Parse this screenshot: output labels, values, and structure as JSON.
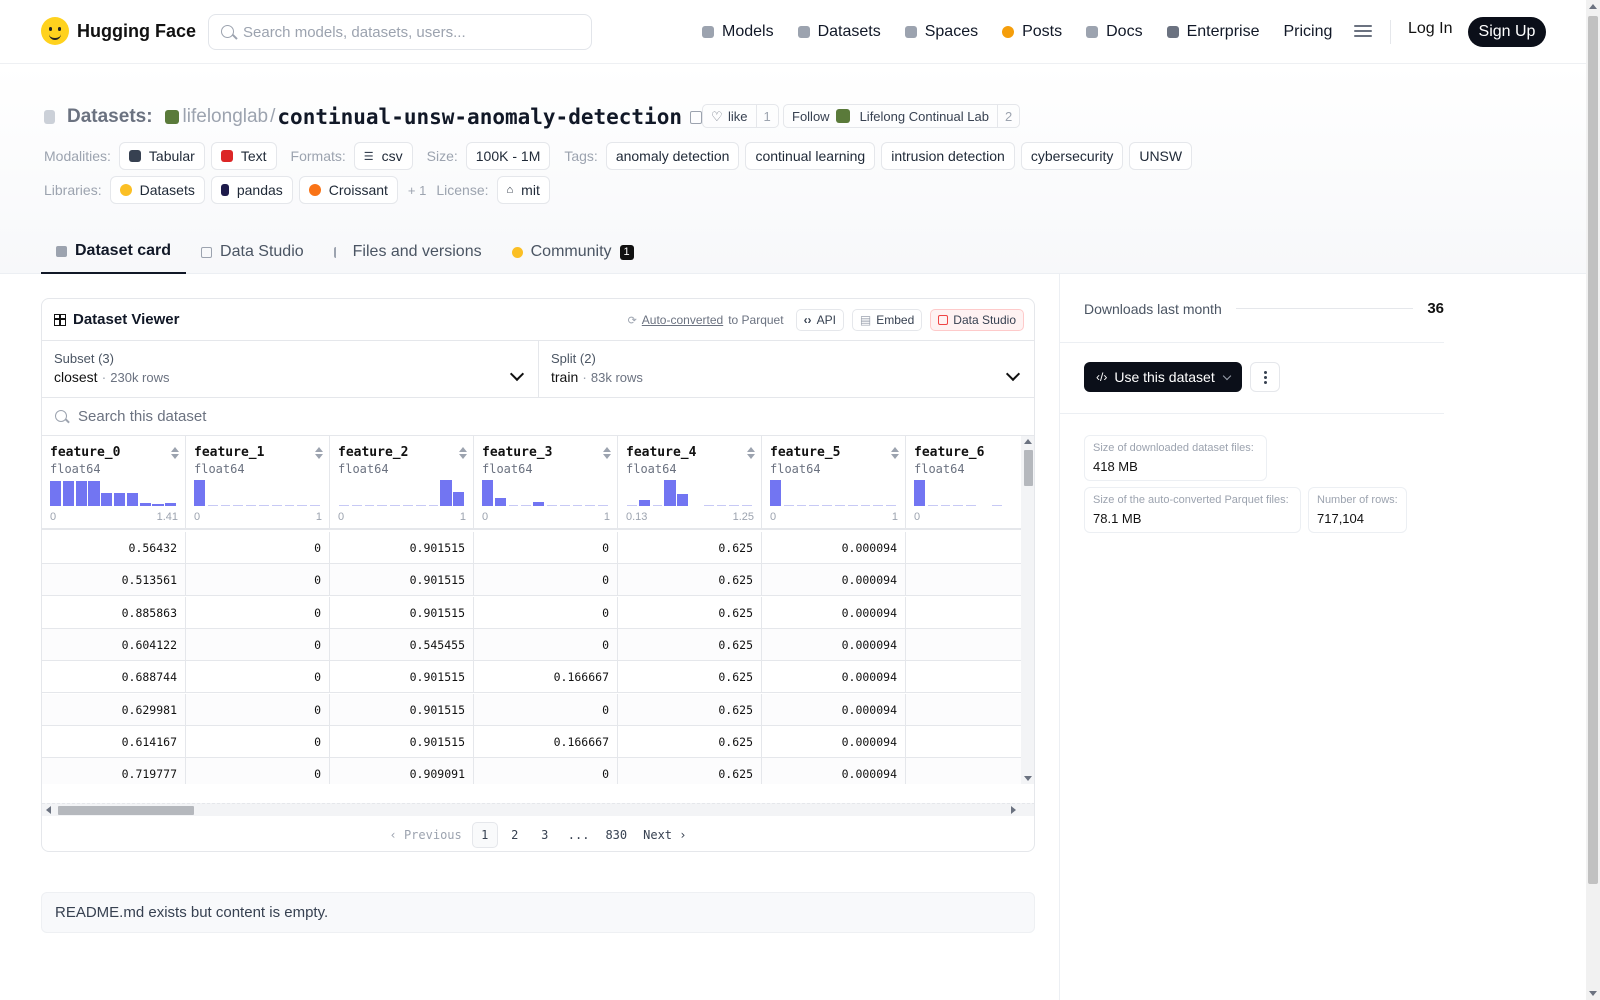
{
  "brand": {
    "name": "Hugging Face",
    "logo": "hugging-face-emoji"
  },
  "search": {
    "placeholder": "Search models, datasets, users..."
  },
  "nav": {
    "items": [
      {
        "label": "Models",
        "icon": "cube-icon",
        "color": "#9ca3af"
      },
      {
        "label": "Datasets",
        "icon": "database-icon",
        "color": "#9ca3af"
      },
      {
        "label": "Spaces",
        "icon": "grid-icon",
        "color": "#9ca3af"
      },
      {
        "label": "Posts",
        "icon": "chat-icon",
        "color": "#f59e0b"
      },
      {
        "label": "Docs",
        "icon": "book-icon",
        "color": "#9ca3af"
      },
      {
        "label": "Enterprise",
        "icon": "enterprise-icon",
        "color": "#6b7280"
      },
      {
        "label": "Pricing",
        "icon": "",
        "color": ""
      }
    ],
    "login": "Log In",
    "signup": "Sign Up"
  },
  "header": {
    "prefix": "Datasets:",
    "org": "lifelonglab",
    "name": "continual-unsw-anomaly-detection",
    "like_label": "like",
    "like_count": "1",
    "follow_label": "Follow",
    "follow_org": "Lifelong Continual Lab",
    "follow_count": "2"
  },
  "meta": {
    "modalities_label": "Modalities:",
    "modalities": [
      "Tabular",
      "Text"
    ],
    "formats_label": "Formats:",
    "formats": [
      "csv"
    ],
    "size_label": "Size:",
    "size": "100K - 1M",
    "tags_label": "Tags:",
    "tags": [
      "anomaly detection",
      "continual learning",
      "intrusion detection",
      "cybersecurity",
      "UNSW"
    ],
    "libraries_label": "Libraries:",
    "libraries": [
      "Datasets",
      "pandas",
      "Croissant"
    ],
    "libraries_more": "+ 1",
    "license_label": "License:",
    "license": "mit"
  },
  "tabs": [
    {
      "label": "Dataset card",
      "active": true
    },
    {
      "label": "Data Studio",
      "active": false
    },
    {
      "label": "Files and versions",
      "active": false
    },
    {
      "label": "Community",
      "active": false,
      "badge": "1"
    }
  ],
  "viewer": {
    "title": "Dataset Viewer",
    "auto_converted": "Auto-converted",
    "to_parquet": "to Parquet",
    "api": "API",
    "embed": "Embed",
    "data_studio": "Data Studio",
    "subset_label": "Subset (3)",
    "subset_value": "closest",
    "subset_rows": "230k rows",
    "split_label": "Split (2)",
    "split_value": "train",
    "split_rows": "83k rows",
    "search_placeholder": "Search this dataset",
    "columns": [
      {
        "name": "feature_0",
        "type": "float64",
        "min": "0",
        "max": "1.41",
        "hist": [
          0.95,
          0.95,
          0.95,
          0.95,
          0.5,
          0.5,
          0.5,
          0.12,
          0.06,
          0.12
        ]
      },
      {
        "name": "feature_1",
        "type": "float64",
        "min": "0",
        "max": "1",
        "hist": [
          1.0,
          0.04,
          0.04,
          0.04,
          0.04,
          0.04,
          0.04,
          0.04,
          0.04,
          0.04
        ]
      },
      {
        "name": "feature_2",
        "type": "float64",
        "min": "0",
        "max": "1",
        "hist": [
          0.04,
          0.04,
          0.04,
          0.04,
          0.04,
          0.04,
          0.04,
          0.04,
          1.0,
          0.55
        ]
      },
      {
        "name": "feature_3",
        "type": "float64",
        "min": "0",
        "max": "1",
        "hist": [
          1.0,
          0.3,
          0.04,
          0.04,
          0.15,
          0.04,
          0.04,
          0.04,
          0.04,
          0.04
        ]
      },
      {
        "name": "feature_4",
        "type": "float64",
        "min": "0.13",
        "max": "1.25",
        "hist": [
          0.04,
          0.22,
          0.04,
          1.0,
          0.45,
          0.0,
          0.04,
          0.04,
          0.04,
          0.04
        ]
      },
      {
        "name": "feature_5",
        "type": "float64",
        "min": "0",
        "max": "1",
        "hist": [
          1.0,
          0.04,
          0.04,
          0.04,
          0.04,
          0.04,
          0.04,
          0.04,
          0.04,
          0.04
        ]
      },
      {
        "name": "feature_6",
        "type": "float64",
        "min": "0",
        "max": "",
        "hist": [
          1.0,
          0.04,
          0.04,
          0.04,
          0.04,
          0.0,
          0.04,
          0.0,
          0.0,
          0.0
        ]
      }
    ],
    "rows": [
      [
        "0.56432",
        "0",
        "0.901515",
        "0",
        "0.625",
        "0.000094",
        ""
      ],
      [
        "0.513561",
        "0",
        "0.901515",
        "0",
        "0.625",
        "0.000094",
        ""
      ],
      [
        "0.885863",
        "0",
        "0.901515",
        "0",
        "0.625",
        "0.000094",
        ""
      ],
      [
        "0.604122",
        "0",
        "0.545455",
        "0",
        "0.625",
        "0.000094",
        ""
      ],
      [
        "0.688744",
        "0",
        "0.901515",
        "0.166667",
        "0.625",
        "0.000094",
        ""
      ],
      [
        "0.629981",
        "0",
        "0.901515",
        "0",
        "0.625",
        "0.000094",
        ""
      ],
      [
        "0.614167",
        "0",
        "0.901515",
        "0.166667",
        "0.625",
        "0.000094",
        ""
      ],
      [
        "0.719777",
        "0",
        "0.909091",
        "0",
        "0.625",
        "0.000094",
        ""
      ]
    ],
    "pager": {
      "previous": "Previous",
      "pages": [
        "1",
        "2",
        "3",
        "...",
        "830"
      ],
      "current": "1",
      "next": "Next"
    }
  },
  "readme": "README.md exists but content is empty.",
  "sidebar": {
    "downloads_label": "Downloads last month",
    "downloads_value": "36",
    "use_dataset": "Use this dataset",
    "size_files_label": "Size of downloaded dataset files:",
    "size_files_value": "418 MB",
    "parquet_label": "Size of the auto-converted Parquet files:",
    "parquet_value": "78.1 MB",
    "rows_label": "Number of rows:",
    "rows_value": "717,104"
  },
  "colors": {
    "accent": "#6366f1",
    "dark": "#0b0f19"
  }
}
